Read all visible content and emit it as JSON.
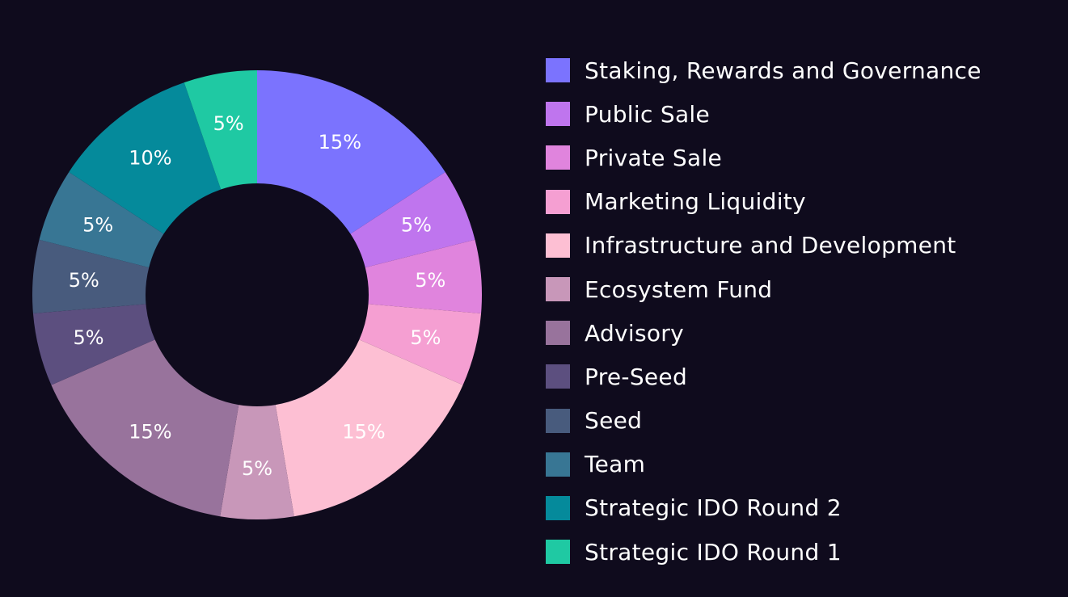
{
  "chart_data": {
    "type": "pie",
    "donut": true,
    "title": "",
    "legend_position": "right",
    "labels": [
      "Staking, Rewards and Governance",
      "Public Sale",
      "Private Sale",
      "Marketing Liquidity",
      "Infrastructure and Development",
      "Ecosystem Fund",
      "Advisory",
      "Pre-Seed",
      "Seed",
      "Team",
      "Strategic IDO Round 2",
      "Strategic IDO Round 1"
    ],
    "values": [
      15,
      5,
      5,
      5,
      15,
      5,
      15,
      5,
      5,
      5,
      10,
      5
    ],
    "value_labels": [
      "15%",
      "5%",
      "5%",
      "5%",
      "15%",
      "5%",
      "15%",
      "5%",
      "5%",
      "5%",
      "10%",
      "5%"
    ],
    "colors": [
      "#7b73fe",
      "#bf75ee",
      "#e084dd",
      "#f59fd2",
      "#fdbfd3",
      "#c897b9",
      "#98739c",
      "#5c4f7f",
      "#485b7d",
      "#387694",
      "#058a9b",
      "#1fc9a3"
    ]
  }
}
